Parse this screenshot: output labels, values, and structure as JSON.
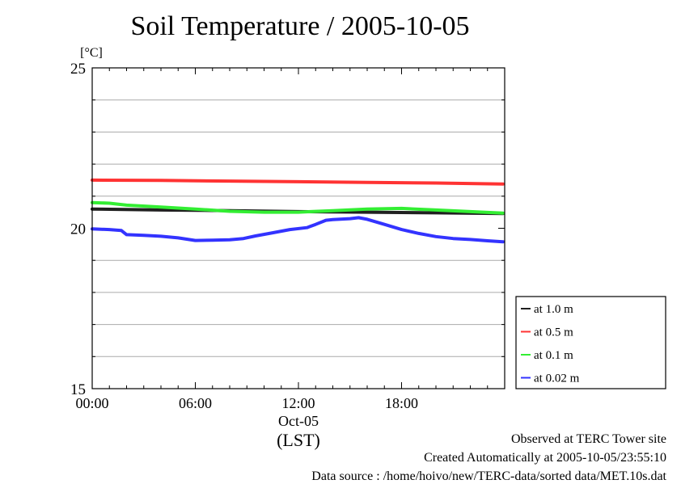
{
  "chart_data": {
    "type": "line",
    "title": "Soil Temperature / 2005-10-05",
    "ylabel": "[°C]",
    "xlabel": "(LST)",
    "date_label": "Oct-05",
    "xlim": [
      0,
      24
    ],
    "ylim": [
      15,
      25
    ],
    "x_ticks": [
      {
        "value": 0,
        "label": "00:00"
      },
      {
        "value": 6,
        "label": "06:00"
      },
      {
        "value": 12,
        "label": "12:00"
      },
      {
        "value": 18,
        "label": "18:00"
      }
    ],
    "y_ticks": [
      {
        "value": 15,
        "label": "15"
      },
      {
        "value": 20,
        "label": "20"
      },
      {
        "value": 25,
        "label": "25"
      }
    ],
    "y_gridlines": [
      16,
      17,
      18,
      19,
      21,
      22,
      23,
      24
    ],
    "legend_position": "right",
    "series": [
      {
        "name": "at 1.0 m",
        "color": "#202020",
        "x": [
          0,
          4,
          8,
          12,
          16,
          20,
          23.9
        ],
        "y": [
          20.6,
          20.57,
          20.55,
          20.52,
          20.5,
          20.48,
          20.46
        ]
      },
      {
        "name": "at 0.5 m",
        "color": "#ff3333",
        "x": [
          0,
          4,
          8,
          12,
          16,
          20,
          23.9
        ],
        "y": [
          21.5,
          21.49,
          21.47,
          21.45,
          21.43,
          21.41,
          21.38
        ]
      },
      {
        "name": "at 0.1 m",
        "color": "#33ee33",
        "x": [
          0,
          1,
          2,
          4,
          6,
          8,
          10,
          12,
          14,
          16,
          18,
          20,
          22,
          23.9
        ],
        "y": [
          20.8,
          20.78,
          20.72,
          20.66,
          20.6,
          20.53,
          20.5,
          20.5,
          20.55,
          20.6,
          20.62,
          20.57,
          20.52,
          20.47
        ]
      },
      {
        "name": "at 0.02 m",
        "color": "#3333ff",
        "x": [
          0,
          1,
          1.7,
          2,
          3,
          4,
          5,
          6,
          7,
          8,
          8.8,
          9.5,
          10.5,
          11.5,
          12.5,
          13,
          13.6,
          14,
          15,
          15.5,
          16,
          17,
          18,
          19,
          20,
          21,
          22,
          23,
          23.9
        ],
        "y": [
          19.98,
          19.96,
          19.93,
          19.8,
          19.78,
          19.75,
          19.7,
          19.62,
          19.63,
          19.64,
          19.68,
          19.76,
          19.86,
          19.96,
          20.02,
          20.12,
          20.25,
          20.27,
          20.3,
          20.33,
          20.28,
          20.12,
          19.96,
          19.84,
          19.74,
          19.68,
          19.65,
          19.61,
          19.58
        ]
      }
    ]
  },
  "footer": {
    "site": "Observed at TERC Tower site",
    "created": "Created Automatically at 2005-10-05/23:55:10",
    "source": "Data source : /home/hoivo/new/TERC-data/sorted  data/MET.10s.dat"
  }
}
